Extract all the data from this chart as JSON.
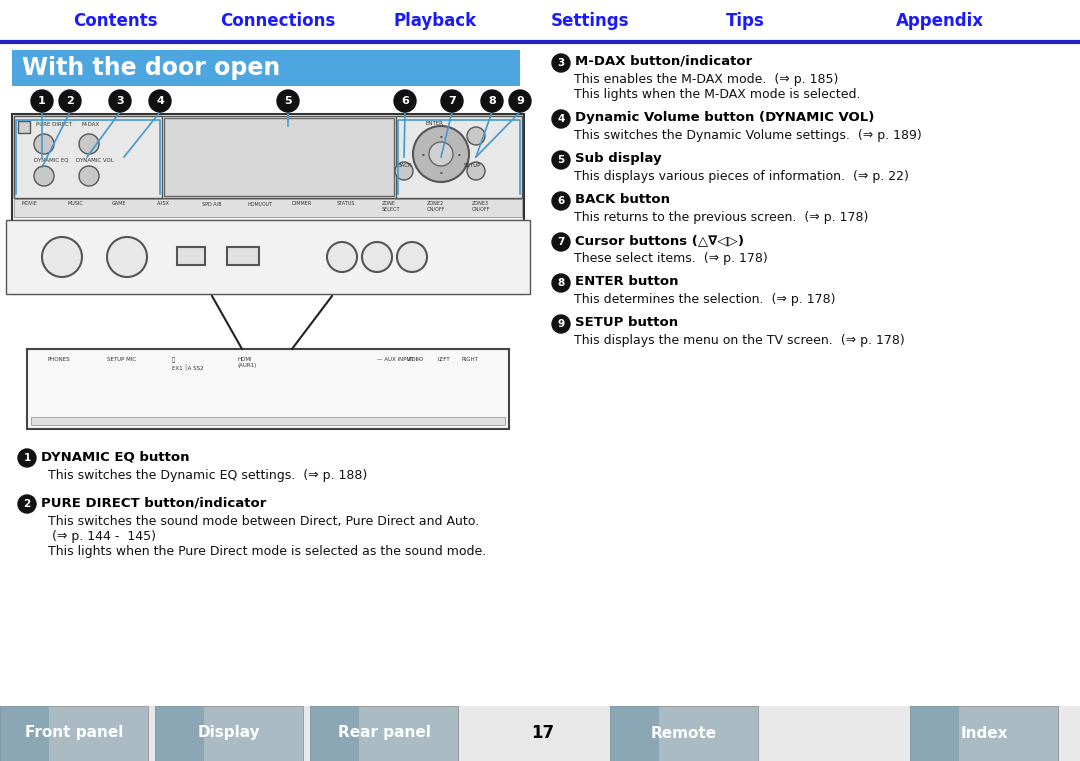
{
  "title": "With the door open",
  "title_bg": "#4da6df",
  "title_color": "white",
  "nav_items": [
    "Contents",
    "Connections",
    "Playback",
    "Settings",
    "Tips",
    "Appendix"
  ],
  "nav_color": "#1a1aff",
  "nav_line_color": "#2222cc",
  "bottom_nav": [
    "Front panel",
    "Display",
    "Rear panel",
    "Remote",
    "Index"
  ],
  "page_number": "17",
  "bg_color": "white",
  "right_items": [
    {
      "num": "3",
      "bold": "M-DAX button/indicator",
      "lines": [
        "This enables the M-DAX mode.  (⇒ p. 185)",
        "This lights when the M-DAX mode is selected."
      ]
    },
    {
      "num": "4",
      "bold": "Dynamic Volume button (DYNAMIC VOL)",
      "lines": [
        "This switches the Dynamic Volume settings.  (⇒ p. 189)"
      ]
    },
    {
      "num": "5",
      "bold": "Sub display",
      "lines": [
        "This displays various pieces of information.  (⇒ p. 22)"
      ]
    },
    {
      "num": "6",
      "bold": "BACK button",
      "lines": [
        "This returns to the previous screen.  (⇒ p. 178)"
      ]
    },
    {
      "num": "7",
      "bold": "Cursor buttons (△∇◁▷)",
      "lines": [
        "These select items.  (⇒ p. 178)"
      ]
    },
    {
      "num": "8",
      "bold": "ENTER button",
      "lines": [
        "This determines the selection.  (⇒ p. 178)"
      ]
    },
    {
      "num": "9",
      "bold": "SETUP button",
      "lines": [
        "This displays the menu on the TV screen.  (⇒ p. 178)"
      ]
    }
  ],
  "left_items": [
    {
      "num": "1",
      "bold": "DYNAMIC EQ button",
      "lines": [
        "This switches the Dynamic EQ settings.  (⇒ p. 188)"
      ]
    },
    {
      "num": "2",
      "bold": "PURE DIRECT button/indicator",
      "lines": [
        "This switches the sound mode between Direct, Pure Direct and Auto.",
        " (⇒ p. 144 -  145)",
        "This lights when the Pure Direct mode is selected as the sound mode."
      ]
    }
  ]
}
